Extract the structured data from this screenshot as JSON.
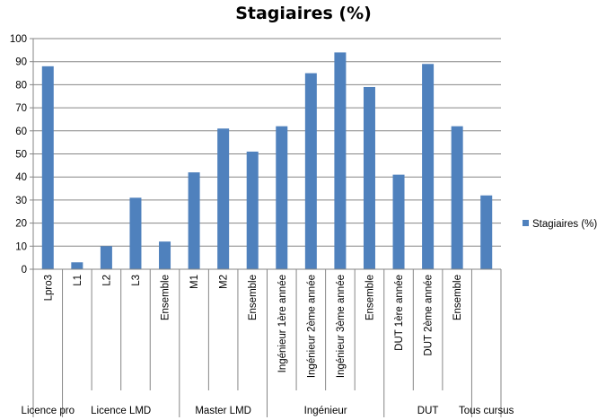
{
  "chart_data": {
    "type": "bar",
    "title": "Stagiaires (%)",
    "series": [
      {
        "name": "Stagiaires (%)",
        "color": "#4f81bd",
        "values": [
          88,
          3,
          10,
          31,
          12,
          42,
          61,
          51,
          62,
          85,
          94,
          79,
          41,
          89,
          62,
          32
        ]
      }
    ],
    "categories": [
      "Lpro3",
      "L1",
      "L2",
      "L3",
      "Ensemble",
      "M1",
      "M2",
      "Ensemble",
      "Ingénieur 1ère année",
      "Ingénieur 2ème année",
      "Ingénieur 3ème année",
      "Ensemble",
      "DUT 1ère année",
      "DUT 2ème année",
      "Ensemble",
      ""
    ],
    "groups": [
      {
        "label": "Licence pro",
        "count": 1
      },
      {
        "label": "Licence LMD",
        "count": 4
      },
      {
        "label": "Master LMD",
        "count": 3
      },
      {
        "label": "Ingénieur",
        "count": 4
      },
      {
        "label": "DUT",
        "count": 3
      },
      {
        "label": "Tous cursus",
        "count": 1
      }
    ],
    "ylim": [
      0,
      100
    ],
    "yticks": [
      0,
      10,
      20,
      30,
      40,
      50,
      60,
      70,
      80,
      90,
      100
    ],
    "grid": true,
    "legend": "right",
    "xlabel": "",
    "ylabel": ""
  }
}
